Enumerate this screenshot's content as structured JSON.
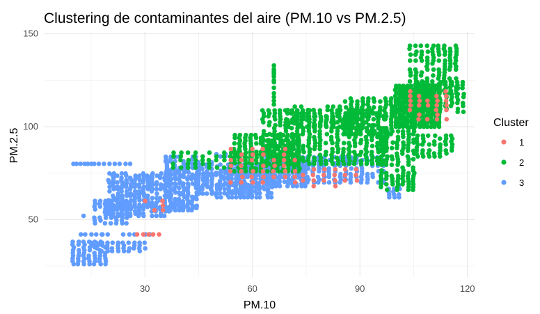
{
  "chart_data": {
    "type": "scatter",
    "title": "Clustering de contaminantes del aire (PM.10 vs PM.2.5)",
    "xlabel": "PM.10",
    "ylabel": "PM.2.5",
    "xlim": [
      2,
      122
    ],
    "ylim": [
      19,
      151
    ],
    "xticks": [
      30,
      60,
      90,
      120
    ],
    "yticks": [
      50,
      100,
      150
    ],
    "grid": true,
    "legend": {
      "title": "Cluster",
      "position": "right"
    },
    "series": [
      {
        "name": "1",
        "color": "#F8766D"
      },
      {
        "name": "2",
        "color": "#00BA38"
      },
      {
        "name": "3",
        "color": "#619CFF"
      }
    ],
    "regions": {
      "3": [
        {
          "x": [
            10,
            16
          ],
          "y": [
            80,
            80
          ],
          "step": 1,
          "dense": true
        },
        {
          "x": [
            17,
            26
          ],
          "y": [
            80,
            80
          ],
          "step": 1.5,
          "dense": true
        },
        {
          "x": [
            13,
            15
          ],
          "y": [
            52,
            52
          ],
          "step": 1.5
        },
        {
          "x": [
            12,
            18
          ],
          "y": [
            42,
            42
          ],
          "step": 1.5
        },
        {
          "x": [
            18,
            32
          ],
          "y": [
            42,
            42
          ],
          "step": 1.5
        },
        {
          "x": [
            10,
            20
          ],
          "y": [
            26,
            38
          ],
          "step": 1.5
        },
        {
          "x": [
            15,
            30
          ],
          "y": [
            33,
            38
          ],
          "step": 1.5
        },
        {
          "x": [
            16,
            25
          ],
          "y": [
            48,
            60
          ],
          "step": 1.5
        },
        {
          "x": [
            20,
            38
          ],
          "y": [
            52,
            76
          ],
          "step": 1.2
        },
        {
          "x": [
            36,
            45
          ],
          "y": [
            55,
            84
          ],
          "step": 1.2
        },
        {
          "x": [
            50,
            66
          ],
          "y": [
            62,
            80
          ],
          "step": 1.1
        },
        {
          "x": [
            64,
            75
          ],
          "y": [
            68,
            84
          ],
          "step": 1.2
        },
        {
          "x": [
            74,
            97
          ],
          "y": [
            70,
            84
          ],
          "step": 1.5
        },
        {
          "x": [
            98,
            102
          ],
          "y": [
            62,
            68
          ],
          "step": 1.5
        },
        {
          "x": [
            45,
            49
          ],
          "y": [
            64,
            82
          ],
          "step": 1.2
        },
        {
          "x": [
            50,
            53
          ],
          "y": [
            84,
            86
          ],
          "step": 1.2
        }
      ],
      "2": [
        {
          "x": [
            66,
            66
          ],
          "y": [
            112,
            133
          ],
          "step": 1
        },
        {
          "x": [
            55,
            73
          ],
          "y": [
            76,
            96
          ],
          "step": 1.5
        },
        {
          "x": [
            63,
            98
          ],
          "y": [
            80,
            110
          ],
          "step": 1.6
        },
        {
          "x": [
            70,
            88
          ],
          "y": [
            100,
            112
          ],
          "step": 1.8
        },
        {
          "x": [
            86,
            100
          ],
          "y": [
            96,
            116
          ],
          "step": 1.6
        },
        {
          "x": [
            96,
            106
          ],
          "y": [
            66,
            100
          ],
          "step": 1.5
        },
        {
          "x": [
            100,
            113
          ],
          "y": [
            100,
            122
          ],
          "step": 1.1,
          "dense": true
        },
        {
          "x": [
            104,
            118
          ],
          "y": [
            118,
            145
          ],
          "step": 1.6
        },
        {
          "x": [
            106,
            119
          ],
          "y": [
            108,
            124
          ],
          "step": 1.6
        },
        {
          "x": [
            106,
            116
          ],
          "y": [
            84,
            96
          ],
          "step": 1.6
        },
        {
          "x": [
            38,
            60
          ],
          "y": [
            78,
            87
          ],
          "step": 2
        }
      ],
      "1": [
        {
          "x": [
            28,
            34
          ],
          "y": [
            42,
            42
          ],
          "step": 1.5
        },
        {
          "x": [
            30,
            36
          ],
          "y": [
            55,
            62
          ],
          "step": 2.5
        },
        {
          "x": [
            54,
            72
          ],
          "y": [
            70,
            88
          ],
          "step": 3
        },
        {
          "x": [
            74,
            90
          ],
          "y": [
            68,
            78
          ],
          "step": 3
        },
        {
          "x": [
            104,
            114
          ],
          "y": [
            104,
            120
          ],
          "step": 2.5
        }
      ]
    }
  }
}
